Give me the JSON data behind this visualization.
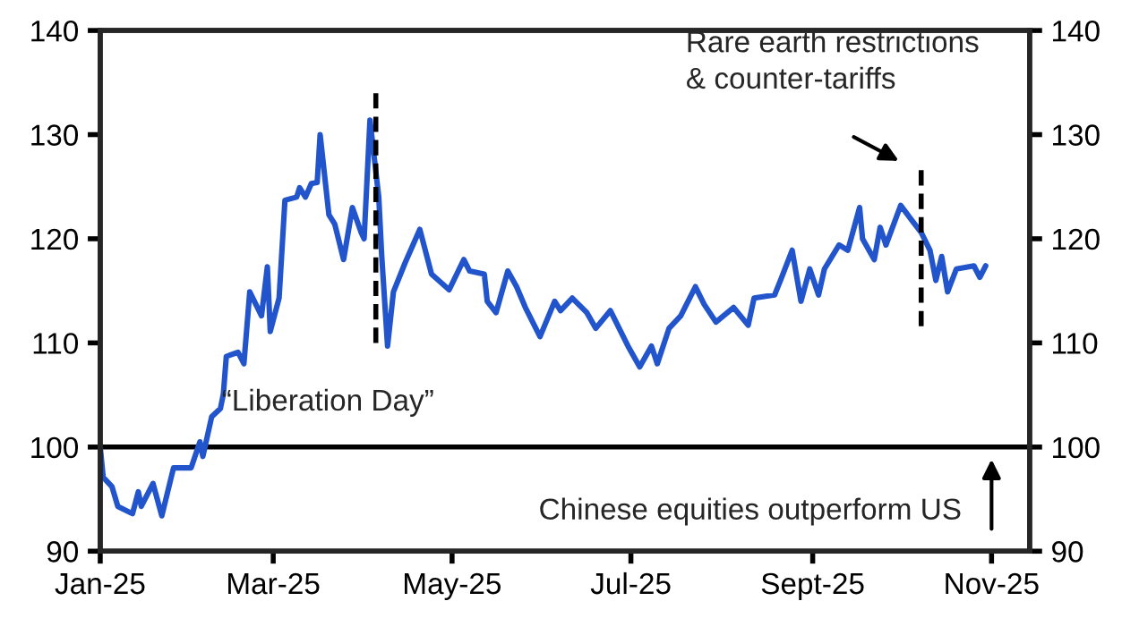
{
  "chart_data": {
    "type": "line",
    "x": [
      "2025-01-01",
      "2025-01-02",
      "2025-01-05",
      "2025-01-07",
      "2025-01-12",
      "2025-01-14",
      "2025-01-15",
      "2025-01-19",
      "2025-01-22",
      "2025-01-26",
      "2025-02-01",
      "2025-02-04",
      "2025-02-05",
      "2025-02-08",
      "2025-02-11",
      "2025-02-12",
      "2025-02-13",
      "2025-02-17",
      "2025-02-19",
      "2025-02-21",
      "2025-02-25",
      "2025-02-27",
      "2025-02-28",
      "2025-03-03",
      "2025-03-05",
      "2025-03-09",
      "2025-03-10",
      "2025-03-12",
      "2025-03-14",
      "2025-03-16",
      "2025-03-17",
      "2025-03-20",
      "2025-03-22",
      "2025-03-25",
      "2025-03-28",
      "2025-03-31",
      "2025-04-01",
      "2025-04-03",
      "2025-04-06",
      "2025-04-07",
      "2025-04-09",
      "2025-04-11",
      "2025-04-15",
      "2025-04-20",
      "2025-04-24",
      "2025-04-30",
      "2025-05-05",
      "2025-05-07",
      "2025-05-12",
      "2025-05-13",
      "2025-05-16",
      "2025-05-20",
      "2025-05-23",
      "2025-05-26",
      "2025-05-31",
      "2025-06-05",
      "2025-06-07",
      "2025-06-11",
      "2025-06-16",
      "2025-06-19",
      "2025-06-24",
      "2025-06-30",
      "2025-07-04",
      "2025-07-08",
      "2025-07-10",
      "2025-07-14",
      "2025-07-18",
      "2025-07-23",
      "2025-07-26",
      "2025-07-30",
      "2025-08-05",
      "2025-08-10",
      "2025-08-12",
      "2025-08-19",
      "2025-08-21",
      "2025-08-25",
      "2025-08-28",
      "2025-08-31",
      "2025-09-03",
      "2025-09-05",
      "2025-09-10",
      "2025-09-13",
      "2025-09-17",
      "2025-09-18",
      "2025-09-22",
      "2025-09-24",
      "2025-09-26",
      "2025-10-01",
      "2025-10-05",
      "2025-10-08",
      "2025-10-11",
      "2025-10-13",
      "2025-10-15",
      "2025-10-17",
      "2025-10-20",
      "2025-10-26",
      "2025-10-28",
      "2025-10-30"
    ],
    "series": [
      {
        "color": "#2255cc",
        "values": [
          100,
          97.1,
          96.2,
          94.3,
          93.6,
          95.7,
          94.3,
          96.5,
          93.4,
          98.0,
          98.0,
          100.5,
          99.1,
          102.9,
          103.7,
          105.1,
          108.7,
          109.1,
          108.0,
          114.9,
          112.6,
          117.3,
          111.1,
          114.3,
          123.7,
          124.0,
          124.9,
          124.0,
          125.3,
          125.4,
          130.0,
          122.3,
          121.4,
          118.0,
          123.0,
          120.6,
          120.0,
          131.4,
          124.0,
          118.4,
          109.7,
          114.9,
          117.7,
          120.9,
          116.6,
          115.1,
          118.0,
          116.9,
          116.6,
          114.0,
          112.9,
          116.9,
          115.4,
          113.4,
          110.6,
          114.0,
          113.1,
          114.3,
          112.9,
          111.4,
          113.1,
          109.7,
          107.7,
          109.7,
          108.0,
          111.4,
          112.6,
          115.4,
          113.7,
          112.0,
          113.4,
          111.7,
          114.3,
          114.6,
          116.0,
          118.9,
          114.0,
          117.1,
          114.6,
          117.1,
          119.4,
          118.9,
          123.0,
          120.0,
          118.0,
          121.1,
          119.4,
          123.2,
          121.7,
          120.6,
          118.9,
          116.0,
          118.3,
          114.9,
          117.1,
          117.4,
          116.3,
          117.4
        ]
      },
      {
        "color": "#000000",
        "line_style": "dashed",
        "x": [
          "2025-04-05",
          "2025-04-05"
        ],
        "values": [
          110,
          134
        ]
      },
      {
        "color": "#000000",
        "line_style": "dashed",
        "x": [
          "2025-10-08",
          "2025-10-08"
        ],
        "values": [
          111.6,
          126.6
        ]
      }
    ],
    "annotations": [
      "“Liberation Day”",
      "Rare earth restrictions\n& counter-tariffs",
      {
        "text": "Chinese equities outperform US",
        "x": "2025-11-01",
        "y": 100
      }
    ],
    "ref_lines": [
      {
        "axis": "y",
        "value": 100,
        "color": "#000000"
      }
    ],
    "xlim": [
      "2025-01-01",
      "2025-11-14"
    ],
    "xticks": [
      {
        "value": "2025-01-01",
        "label": "Jan-25"
      },
      {
        "value": "2025-03-01",
        "label": "Mar-25"
      },
      {
        "value": "2025-05-01",
        "label": "May-25"
      },
      {
        "value": "2025-07-01",
        "label": "Jul-25"
      },
      {
        "value": "2025-09-01",
        "label": "Sept-25"
      },
      {
        "value": "2025-11-01",
        "label": "Nov-25"
      }
    ],
    "ylim": [
      90,
      140
    ],
    "yticks": [
      90,
      100,
      110,
      120,
      130,
      140
    ],
    "y2lim": [
      90,
      140
    ],
    "y2ticks": [
      90,
      100,
      110,
      120,
      130,
      140
    ],
    "grid": false,
    "legend": false
  }
}
